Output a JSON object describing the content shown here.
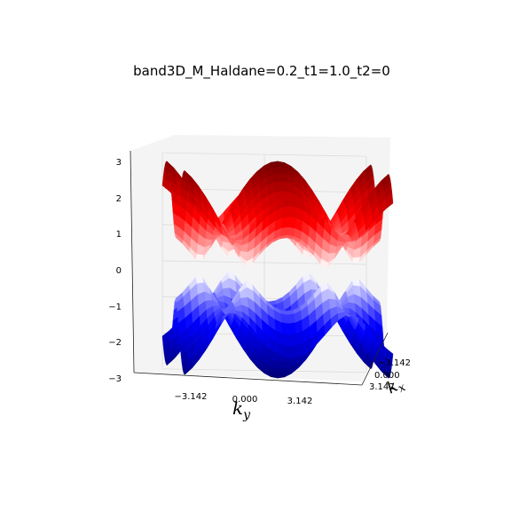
{
  "chart_data": {
    "type": "surface3d",
    "title": "band3D_M_Haldane=0.2_t1=1.0_t2=0",
    "xlabel": "k",
    "xlabel_sub": "x",
    "ylabel": "k",
    "ylabel_sub": "y",
    "zlabel": "",
    "xlim": [
      -3.142,
      3.142
    ],
    "ylim": [
      -3.142,
      3.142
    ],
    "zlim": [
      -3,
      3
    ],
    "x_ticks": [
      "−3.142",
      "0.000",
      "3.142"
    ],
    "y_ticks": [
      "−3.142",
      "0.000",
      "3.142"
    ],
    "z_ticks": [
      "3",
      "2",
      "1",
      "0",
      "−1",
      "−2",
      "−3"
    ],
    "grid": true,
    "parameters": {
      "M": 0.2,
      "t1": 1.0,
      "t2": 0
    },
    "series": [
      {
        "name": "upper band",
        "colormap": "white-to-red",
        "sign": 1
      },
      {
        "name": "lower band",
        "colormap": "blue-to-white",
        "sign": -1
      }
    ],
    "colors": {
      "upper_dark": "#7a0000",
      "upper_mid": "#ff0000",
      "lower_dark": "#00007a",
      "lower_mid": "#0000ff",
      "pane": "#f2f2f2",
      "grid": "#d9d9d9"
    }
  }
}
